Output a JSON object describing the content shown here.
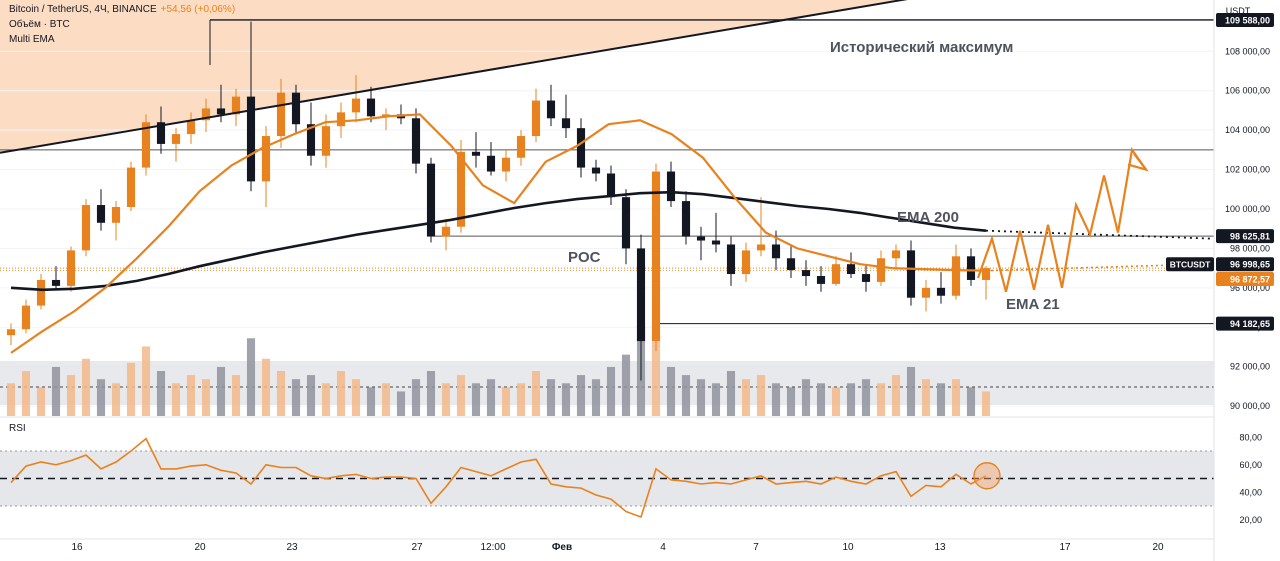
{
  "header": {
    "symbol_line": "Bitcoin / TetherUS, 4Ч, BINANCE",
    "change": "+54,56 (+0,06%)",
    "volume_line": "Объём · BTC",
    "indicator_line": "Multi EMA"
  },
  "rsi_label": "RSI",
  "chart_data": {
    "type": "candlestick",
    "symbol": "BTCUSDT",
    "exchange": "BINANCE",
    "timeframe": "4Ч",
    "currency": "USDT",
    "ylim": [
      89500,
      110600
    ],
    "price_ticks": [
      "90 000,00",
      "92 000,00",
      "94 000,00",
      "96 000,00",
      "98 000,00",
      "100 000,00",
      "102 000,00",
      "104 000,00",
      "106 000,00",
      "108 000,00"
    ],
    "x_ticks": [
      "16",
      "20",
      "23",
      "27",
      "12:00",
      "Фев",
      "4",
      "7",
      "10",
      "13",
      "17",
      "20"
    ],
    "series": [
      {
        "name": "EMA 200",
        "color": "#131722",
        "values": [
          96000,
          95900,
          95950,
          96100,
          96350,
          96700,
          97100,
          97450,
          97800,
          98100,
          98400,
          98700,
          98950,
          99200,
          99450,
          99750,
          100050,
          100300,
          100500,
          100650,
          100800,
          100850,
          100750,
          100550,
          100350,
          100150,
          100000,
          99800,
          99550,
          99300,
          99050,
          98900
        ]
      },
      {
        "name": "EMA 21",
        "color": "#e8821e",
        "values": [
          92700,
          93800,
          94800,
          96000,
          97500,
          99100,
          100900,
          102200,
          103100,
          103800,
          104400,
          104500,
          104700,
          104800,
          103200,
          101200,
          100300,
          102400,
          103200,
          104300,
          104500,
          103800,
          102600,
          100600,
          98800,
          98000,
          97600,
          97200,
          97000,
          96950,
          96900,
          96873
        ]
      }
    ],
    "candles_ohlc": [
      [
        93600,
        94200,
        93100,
        93900
      ],
      [
        93900,
        95400,
        93700,
        95100
      ],
      [
        95100,
        96700,
        94900,
        96400
      ],
      [
        96400,
        97100,
        95900,
        96100
      ],
      [
        96100,
        98100,
        95800,
        97900
      ],
      [
        97900,
        100500,
        97600,
        100200
      ],
      [
        100200,
        101000,
        98900,
        99300
      ],
      [
        99300,
        100400,
        98400,
        100100
      ],
      [
        100100,
        102400,
        99900,
        102100
      ],
      [
        102100,
        104800,
        101700,
        104400
      ],
      [
        104400,
        105200,
        102800,
        103300
      ],
      [
        103300,
        104100,
        102400,
        103800
      ],
      [
        103800,
        104900,
        103300,
        104500
      ],
      [
        104500,
        105600,
        103900,
        105100
      ],
      [
        105100,
        106300,
        104400,
        104800
      ],
      [
        104800,
        106100,
        104200,
        105700
      ],
      [
        105700,
        109500,
        100900,
        101400
      ],
      [
        101400,
        104200,
        100100,
        103700
      ],
      [
        103700,
        106600,
        103100,
        105900
      ],
      [
        105900,
        106300,
        103800,
        104300
      ],
      [
        104300,
        105400,
        102200,
        102700
      ],
      [
        102700,
        104800,
        102100,
        104200
      ],
      [
        104200,
        105400,
        103600,
        104900
      ],
      [
        104900,
        106800,
        104400,
        105600
      ],
      [
        105600,
        106200,
        104400,
        104700
      ],
      [
        104700,
        105100,
        104000,
        104800
      ],
      [
        104800,
        105300,
        104300,
        104600
      ],
      [
        104600,
        105100,
        101800,
        102300
      ],
      [
        102300,
        102600,
        98300,
        98600
      ],
      [
        98600,
        99500,
        97900,
        99100
      ],
      [
        99100,
        103500,
        98800,
        102900
      ],
      [
        102900,
        103900,
        102100,
        102700
      ],
      [
        102700,
        103400,
        101700,
        101900
      ],
      [
        101900,
        103000,
        101400,
        102600
      ],
      [
        102600,
        104000,
        102200,
        103700
      ],
      [
        103700,
        106100,
        103400,
        105500
      ],
      [
        105500,
        106300,
        104200,
        104600
      ],
      [
        104600,
        105800,
        103600,
        104100
      ],
      [
        104100,
        104600,
        101600,
        102100
      ],
      [
        102100,
        102500,
        101400,
        101800
      ],
      [
        101800,
        102200,
        100200,
        100600
      ],
      [
        100600,
        101000,
        97200,
        98000
      ],
      [
        98000,
        98700,
        91300,
        93300
      ],
      [
        93300,
        102300,
        92800,
        101900
      ],
      [
        101900,
        102400,
        100100,
        100400
      ],
      [
        100400,
        100900,
        98200,
        98600
      ],
      [
        98600,
        99100,
        97400,
        98400
      ],
      [
        98400,
        99800,
        97800,
        98200
      ],
      [
        98200,
        98600,
        96100,
        96700
      ],
      [
        96700,
        98300,
        96300,
        97900
      ],
      [
        97900,
        100600,
        97600,
        98200
      ],
      [
        98200,
        98900,
        96900,
        97500
      ],
      [
        97500,
        98100,
        96500,
        96900
      ],
      [
        96900,
        97400,
        96100,
        96600
      ],
      [
        96600,
        97100,
        95800,
        96200
      ],
      [
        96200,
        97600,
        96100,
        97200
      ],
      [
        97200,
        97800,
        96500,
        96700
      ],
      [
        96700,
        97200,
        95800,
        96300
      ],
      [
        96300,
        97900,
        96100,
        97500
      ],
      [
        97500,
        98200,
        96900,
        97900
      ],
      [
        97900,
        98400,
        95100,
        95500
      ],
      [
        95500,
        96400,
        94800,
        96000
      ],
      [
        96000,
        96800,
        95200,
        95600
      ],
      [
        95600,
        98200,
        95400,
        97600
      ],
      [
        97600,
        98000,
        96100,
        96400
      ],
      [
        96400,
        97100,
        95400,
        96998
      ]
    ],
    "volumes": [
      40,
      55,
      35,
      60,
      50,
      70,
      45,
      40,
      65,
      85,
      55,
      40,
      50,
      45,
      60,
      50,
      95,
      70,
      55,
      45,
      50,
      40,
      55,
      45,
      35,
      40,
      30,
      45,
      55,
      40,
      50,
      40,
      45,
      35,
      40,
      55,
      45,
      40,
      50,
      45,
      60,
      75,
      110,
      95,
      60,
      50,
      45,
      40,
      55,
      45,
      50,
      40,
      35,
      45,
      40,
      35,
      40,
      45,
      40,
      50,
      60,
      45,
      40,
      45,
      35,
      30
    ],
    "rsi": {
      "levels": [
        70,
        50,
        30
      ],
      "ticks": [
        "80,00",
        "60,00",
        "40,00",
        "20,00"
      ],
      "values": [
        47,
        59,
        62,
        60,
        63,
        67,
        57,
        62,
        70,
        79,
        57,
        57,
        59,
        60,
        56,
        54,
        46,
        60,
        58,
        58,
        52,
        50,
        52,
        53,
        50,
        51,
        51,
        50,
        32,
        44,
        58,
        55,
        52,
        57,
        62,
        64,
        46,
        44,
        43,
        38,
        35,
        26,
        22,
        57,
        49,
        48,
        46,
        47,
        46,
        49,
        52,
        46,
        47,
        48,
        46,
        51,
        48,
        46,
        52,
        55,
        37,
        45,
        44,
        53,
        46,
        52
      ]
    },
    "annotations": [
      {
        "type": "hline",
        "label": "109 588,00",
        "value": 109588
      },
      {
        "type": "hline",
        "label": "103 000",
        "value": 103000
      },
      {
        "type": "hline",
        "label": "98 625,81",
        "value": 98625.81,
        "text": "POC"
      },
      {
        "type": "hline",
        "label": "94 182,65",
        "value": 94182.65
      },
      {
        "type": "text",
        "text": "Исторический максимум"
      },
      {
        "type": "text",
        "text": "EMA 200"
      },
      {
        "type": "text",
        "text": "EMA 21"
      },
      {
        "type": "text",
        "text": "POC"
      },
      {
        "type": "zigzag_projection",
        "values": [
          96500,
          98500,
          95800,
          98900,
          95900,
          99200,
          96000,
          100200,
          98700,
          101700,
          98800,
          103000,
          102000
        ]
      }
    ],
    "price_labels": [
      {
        "text": "98 625,81",
        "style": "dark"
      },
      {
        "text": "BTCUSDT",
        "style": "dark"
      },
      {
        "text": "96 998,65",
        "style": "dark"
      },
      {
        "text": "96 872,57",
        "style": "orange"
      },
      {
        "text": "94 182,65",
        "style": "dark"
      },
      {
        "text": "109 588,00",
        "style": "dark"
      }
    ],
    "currency_label": "USDT"
  }
}
